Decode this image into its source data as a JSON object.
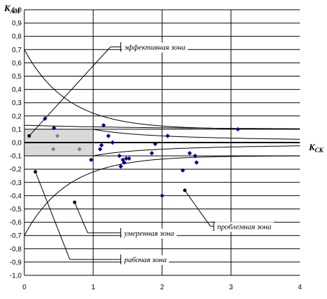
{
  "chart_data": {
    "type": "scatter",
    "title": "",
    "xlabel": {
      "main": "K",
      "sub": "СК"
    },
    "ylabel": {
      "main": "K",
      "sub": "АМ"
    },
    "xlim": [
      0,
      4
    ],
    "ylim": [
      -1.0,
      1.0
    ],
    "x_ticks": [
      "0",
      "1",
      "2",
      "3",
      "4"
    ],
    "y_ticks": [
      "1,0",
      "0,9",
      "0,8",
      "0,7",
      "0,6",
      "0,5",
      "0,4",
      "0,3",
      "0,2",
      "0,1",
      "0,0",
      "-0,1",
      "-0,2",
      "-0,3",
      "-0,4",
      "-0,5",
      "-0,6",
      "-0,7",
      "-0,8",
      "-0,9",
      "-1,0"
    ],
    "grid": {
      "horizontal_step": 0.1,
      "vertical_at": [
        1,
        2,
        3
      ]
    },
    "colors": {
      "points": "#000080",
      "grey_points": "#808080",
      "zone_fill": "#d9d9d9",
      "curve": "#000000",
      "grid": "#000000"
    },
    "zones": {
      "effective": "эффективная зона",
      "problem": "проблемная зона",
      "moderate": "умеренная зона",
      "working": "рабочая зона"
    },
    "working_zone": {
      "x": [
        0,
        1
      ],
      "y": [
        -0.1,
        0.1
      ]
    },
    "boundary_curves": [
      {
        "formula": "0.1/x",
        "x_range": [
          1,
          4
        ]
      },
      {
        "formula": "-0.1/x",
        "x_range": [
          1,
          4
        ]
      },
      {
        "formula": "0.1 + 0.6*exp(-1.6x)",
        "x_range": [
          0,
          4
        ]
      },
      {
        "formula": "-(0.1 + 0.6*exp(-1.6x))",
        "x_range": [
          0,
          4
        ]
      },
      {
        "formula": "0.1 + 0.03*exp(-0.5x)",
        "x_range": [
          0,
          4
        ]
      }
    ],
    "points": [
      {
        "x": 0.3,
        "y": 0.18
      },
      {
        "x": 0.43,
        "y": 0.11
      },
      {
        "x": 0.97,
        "y": -0.13
      },
      {
        "x": 1.1,
        "y": -0.05
      },
      {
        "x": 1.12,
        "y": -0.02
      },
      {
        "x": 1.15,
        "y": 0.13
      },
      {
        "x": 1.22,
        "y": 0.05
      },
      {
        "x": 1.28,
        "y": 0.0
      },
      {
        "x": 1.38,
        "y": -0.1
      },
      {
        "x": 1.4,
        "y": -0.18
      },
      {
        "x": 1.43,
        "y": -0.13
      },
      {
        "x": 1.45,
        "y": -0.15
      },
      {
        "x": 1.48,
        "y": -0.12
      },
      {
        "x": 1.52,
        "y": -0.12
      },
      {
        "x": 1.85,
        "y": -0.08
      },
      {
        "x": 1.9,
        "y": -0.01
      },
      {
        "x": 2.0,
        "y": -0.4
      },
      {
        "x": 2.08,
        "y": 0.05
      },
      {
        "x": 2.3,
        "y": -0.21
      },
      {
        "x": 2.4,
        "y": -0.08
      },
      {
        "x": 2.48,
        "y": -0.1
      },
      {
        "x": 2.5,
        "y": -0.15
      },
      {
        "x": 3.1,
        "y": 0.1
      }
    ],
    "grey_points": [
      {
        "x": 0.42,
        "y": -0.05
      },
      {
        "x": 0.48,
        "y": 0.05
      },
      {
        "x": 0.8,
        "y": -0.05
      }
    ],
    "callouts": [
      {
        "zone": "effective",
        "anchor": {
          "x": 0.07,
          "y": 0.05
        },
        "elbow": {
          "x": 1.25,
          "y": 0.72
        },
        "label_at": {
          "x": 1.4,
          "y": 0.72
        }
      },
      {
        "zone": "problem",
        "anchor": {
          "x": 2.33,
          "y": -0.36
        },
        "elbow": {
          "x": 2.7,
          "y": -0.63
        },
        "label_at": {
          "x": 2.75,
          "y": -0.63
        }
      },
      {
        "zone": "moderate",
        "anchor": {
          "x": 0.73,
          "y": -0.45
        },
        "elbow": {
          "x": 0.92,
          "y": -0.68
        },
        "label_at": {
          "x": 1.4,
          "y": -0.68
        }
      },
      {
        "zone": "working",
        "anchor": {
          "x": 0.16,
          "y": -0.22
        },
        "elbow": {
          "x": 0.66,
          "y": -0.88
        },
        "label_at": {
          "x": 1.4,
          "y": -0.88
        }
      }
    ]
  }
}
